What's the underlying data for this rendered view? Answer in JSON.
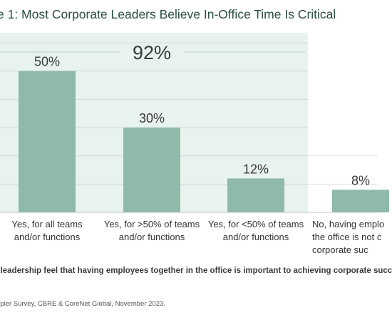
{
  "chart_data": {
    "type": "bar",
    "title": "e 1: Most Corporate Leaders Believe In-Office Time Is Critical",
    "categories": [
      [
        "Yes, for all teams",
        "and/or functions"
      ],
      [
        "Yes, for >50% of teams",
        "and/or functions"
      ],
      [
        "Yes, for <50% of teams",
        "and/or functions"
      ],
      [
        "No, having emplo",
        "the office is not c",
        "corporate suc"
      ]
    ],
    "values": [
      50,
      30,
      12,
      8
    ],
    "value_labels": [
      "50%",
      "30%",
      "12%",
      "8%"
    ],
    "ylim": [
      0,
      60
    ],
    "grid": true,
    "highlight": {
      "label": "92%",
      "covers_categories": [
        0,
        1,
        2
      ]
    },
    "colors": {
      "bar": "#8fbaa9",
      "highlight_bg": "#e8f2ee",
      "text": "#3a3a3a",
      "title": "#2b4f3e"
    }
  },
  "question": "s leadership feel that having employees together in the office is important to achieving corporate succ",
  "source": "upier Survey, CBRE & CoreNet Global, November 2023."
}
